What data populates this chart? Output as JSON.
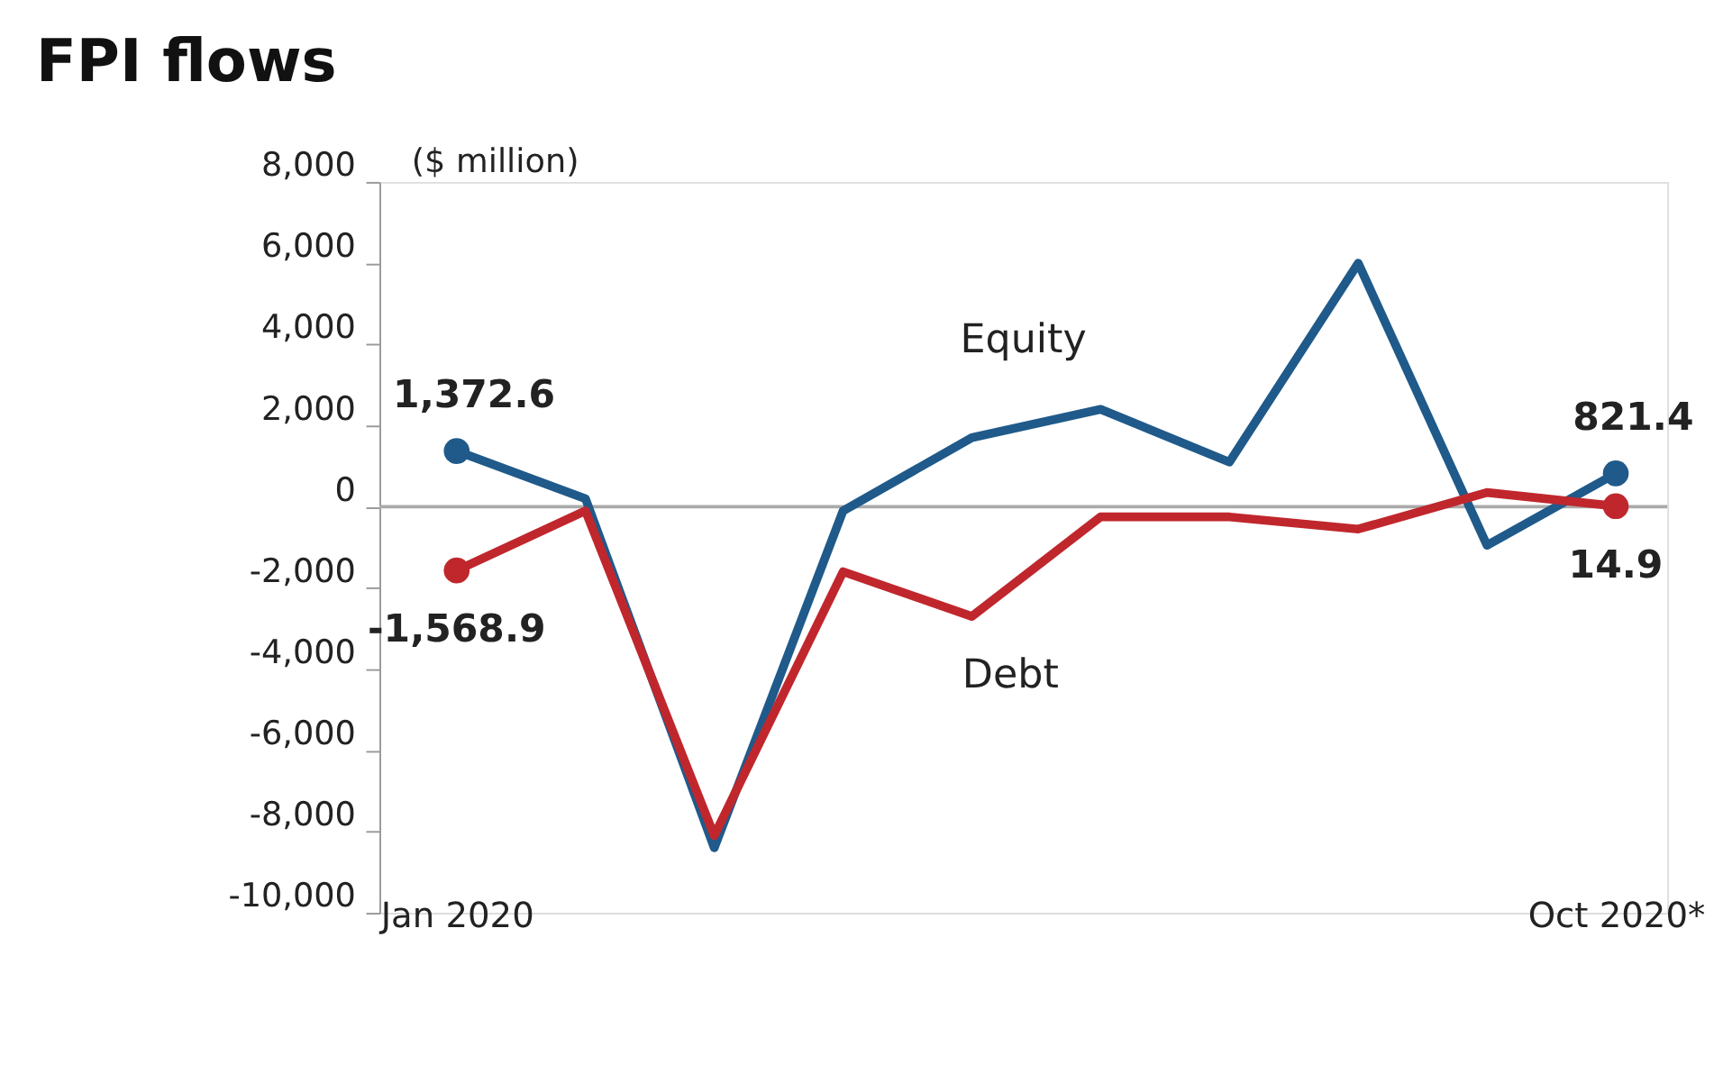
{
  "chart_data": {
    "type": "line",
    "title": "FPI flows",
    "ylabel": "($ million)",
    "categories": [
      "Jan 2020",
      null,
      null,
      null,
      null,
      null,
      null,
      null,
      null,
      "Oct 2020*"
    ],
    "series": [
      {
        "name": "Equity",
        "color": "#1f5a8a",
        "values": [
          1372.6,
          200,
          -8400,
          -100,
          1700,
          2400,
          1100,
          6000,
          -950,
          821.4
        ],
        "value_labels": [
          "1,372.6",
          null,
          null,
          null,
          null,
          null,
          null,
          null,
          null,
          "821.4"
        ]
      },
      {
        "name": "Debt",
        "color": "#c0272d",
        "values": [
          -1568.9,
          -100,
          -8100,
          -1600,
          -2700,
          -250,
          -250,
          -550,
          350,
          14.9
        ],
        "value_labels": [
          "-1,568.9",
          null,
          null,
          null,
          null,
          null,
          null,
          null,
          null,
          "14.9"
        ]
      }
    ],
    "ylim": [
      -10000,
      8000
    ],
    "yticks": [
      {
        "value": -10000,
        "label": "-10,000"
      },
      {
        "value": -8000,
        "label": "-8,000"
      },
      {
        "value": -6000,
        "label": "-6,000"
      },
      {
        "value": -4000,
        "label": "-4,000"
      },
      {
        "value": -2000,
        "label": "-2,000"
      },
      0,
      {
        "value": 2000,
        "label": "2,000"
      },
      {
        "value": 4000,
        "label": "4,000"
      },
      {
        "value": 6000,
        "label": "6,000"
      },
      {
        "value": 8000,
        "label": "8,000"
      }
    ],
    "ref_lines": [
      {
        "axis": "y",
        "value": 0,
        "color": "#aaaaaa"
      }
    ],
    "grid": false
  }
}
